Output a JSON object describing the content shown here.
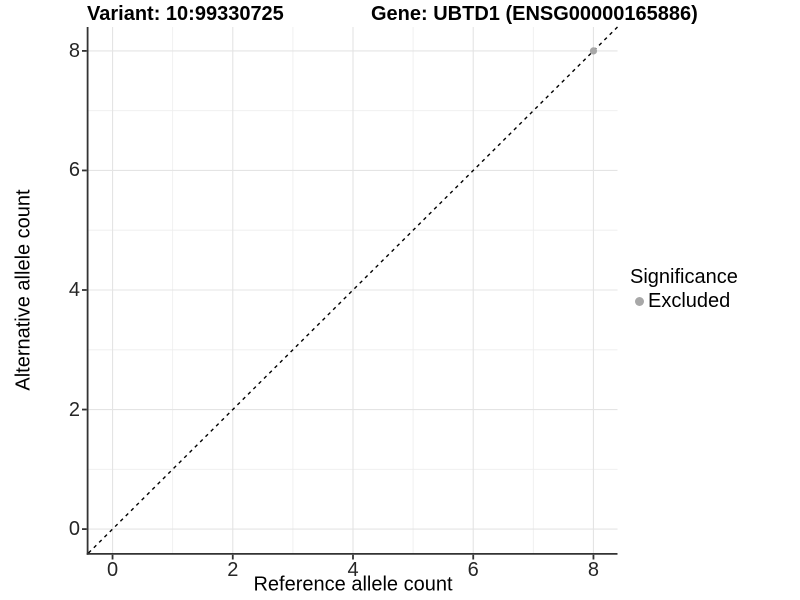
{
  "title_left": "Variant: 10:99330725",
  "title_right": "Gene: UBTD1 (ENSG00000165886)",
  "chart_data": {
    "type": "scatter",
    "xlabel": "Reference allele count",
    "ylabel": "Alternative allele count",
    "xlim": [
      -0.4,
      8.4
    ],
    "ylim": [
      -0.4,
      8.4
    ],
    "x_ticks": [
      0,
      2,
      4,
      6,
      8
    ],
    "y_ticks": [
      0,
      2,
      4,
      6,
      8
    ],
    "x_minor_ticks": [
      1,
      3,
      5,
      7
    ],
    "y_minor_ticks": [
      1,
      3,
      5,
      7
    ],
    "grid": "major+minor",
    "reference_line": {
      "type": "identity",
      "slope": 1,
      "intercept": 0,
      "style": "dashed",
      "color": "#000000"
    },
    "points": [
      {
        "x": 8,
        "y": 8,
        "significance": "Excluded",
        "color": "#a8a8a8"
      }
    ],
    "legend": {
      "title": "Significance",
      "position": "right",
      "items": [
        {
          "label": "Excluded",
          "marker": "circle",
          "color": "#a8a8a8"
        }
      ]
    },
    "colors": {
      "background": "#ffffff",
      "grid_major": "#e4e4e4",
      "grid_minor": "#eeeeee",
      "axis_line": "#333333",
      "tick_text": "#262626",
      "point": "#a8a8a8"
    }
  }
}
